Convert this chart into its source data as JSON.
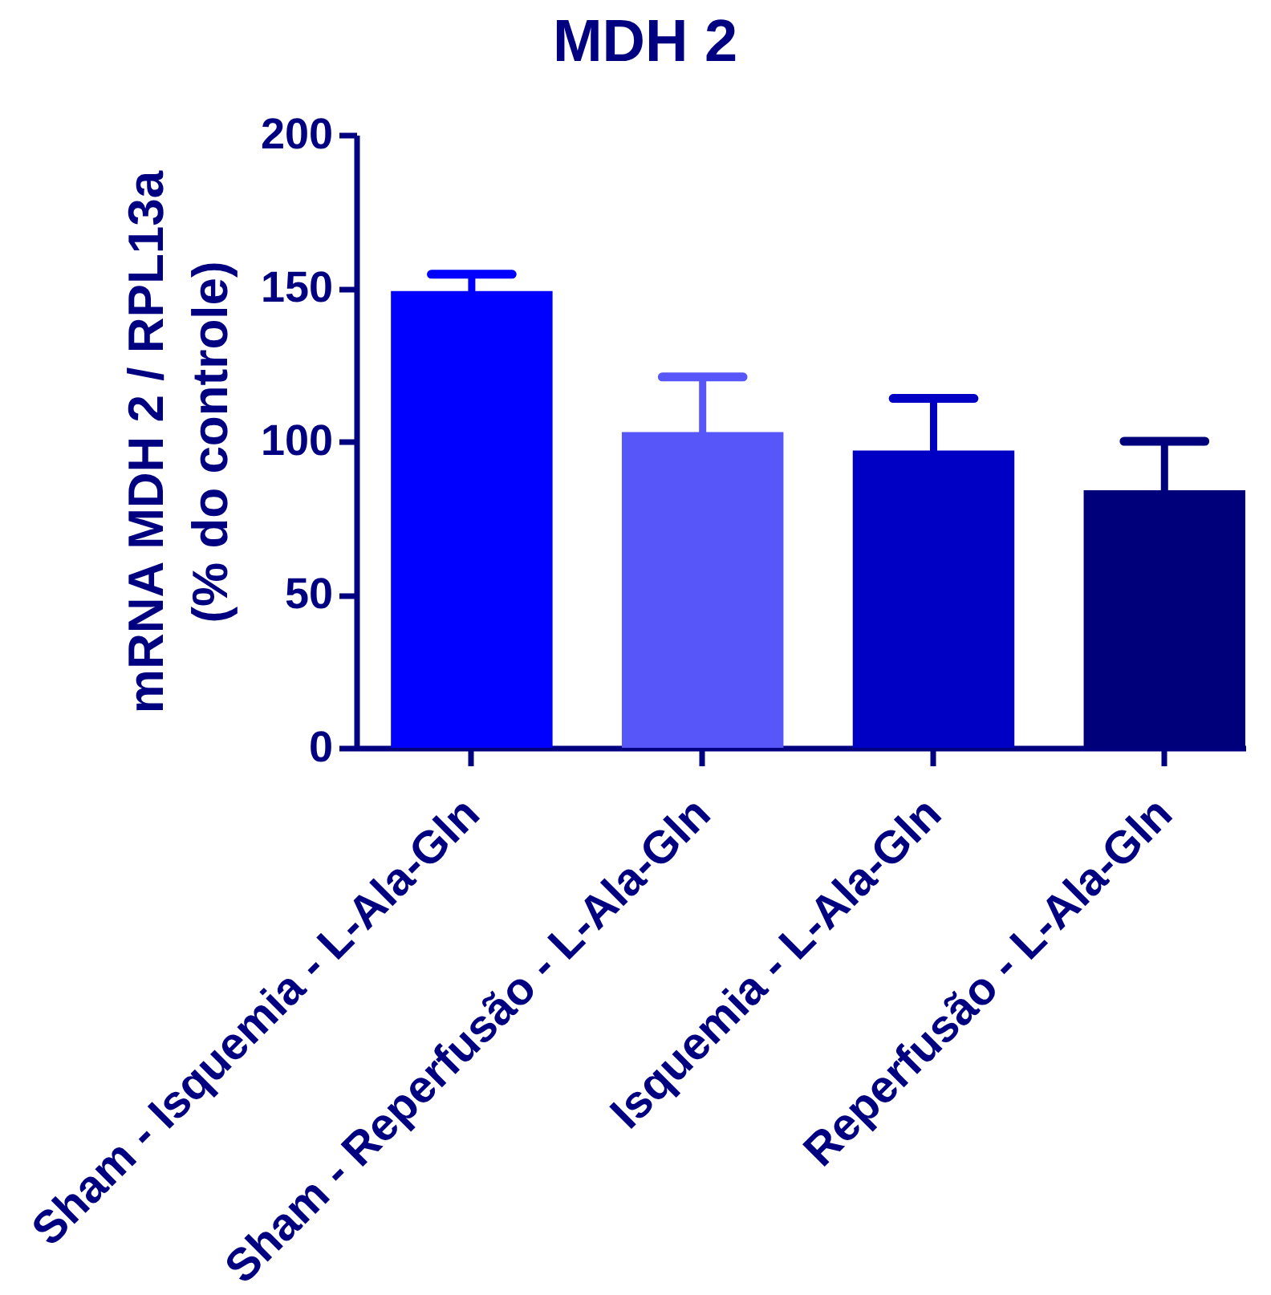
{
  "chart_data": {
    "type": "bar",
    "title": "MDH 2",
    "ylabel": "mRNA MDH 2 / RPL13a\n(% do controle)",
    "categories": [
      "Sham - Isquemia - L-Ala-Gln",
      "Sham - Reperfusão - L-Ala-Gln",
      "Isquemia - L-Ala-Gln",
      "Reperfusão - L-Ala-Gln"
    ],
    "values": [
      149,
      103,
      97,
      84
    ],
    "errors": [
      5.5,
      18,
      17,
      16
    ],
    "colors": [
      "#0000ff",
      "#5757f9",
      "#0000c4",
      "#00007a"
    ],
    "ylim": [
      0,
      200
    ],
    "yticks": [
      0,
      50,
      100,
      150,
      200
    ]
  }
}
